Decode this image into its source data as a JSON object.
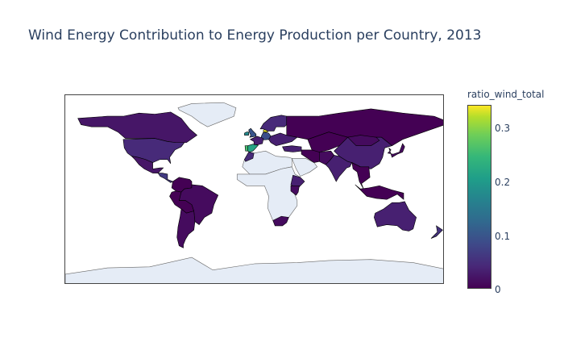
{
  "title": "Wind Energy Contribution to Energy Production per Country, 2013",
  "colorbar": {
    "title": "ratio_wind_total",
    "ticks": [
      "0.3",
      "0.2",
      "0.1",
      "0"
    ],
    "tick_values": [
      0.3,
      0.2,
      0.1,
      0
    ],
    "range": [
      0,
      0.34
    ],
    "colorscale": "Viridis"
  },
  "map": {
    "projection": "equirectangular",
    "no_data_color": "#e5ecf6",
    "border_color": "#000000",
    "ocean_color": "#ffffff"
  },
  "regions": [
    {
      "name": "Greenland",
      "value": null
    },
    {
      "name": "Canada",
      "value": 0.02
    },
    {
      "name": "United States",
      "value": 0.04
    },
    {
      "name": "Mexico",
      "value": 0.02
    },
    {
      "name": "Central America",
      "value": 0.06
    },
    {
      "name": "Colombia/Venezuela",
      "value": 0.0
    },
    {
      "name": "Brazil",
      "value": 0.01
    },
    {
      "name": "Peru/Bolivia",
      "value": 0.0
    },
    {
      "name": "Argentina/Chile",
      "value": 0.01
    },
    {
      "name": "Portugal",
      "value": 0.24
    },
    {
      "name": "Spain",
      "value": 0.2
    },
    {
      "name": "United Kingdom",
      "value": 0.09
    },
    {
      "name": "Ireland",
      "value": 0.16
    },
    {
      "name": "Denmark",
      "value": 0.33
    },
    {
      "name": "Germany",
      "value": 0.08
    },
    {
      "name": "France",
      "value": 0.03
    },
    {
      "name": "Scandinavia",
      "value": 0.04
    },
    {
      "name": "Eastern Europe",
      "value": 0.03
    },
    {
      "name": "Russia",
      "value": 0.0
    },
    {
      "name": "Turkey",
      "value": 0.03
    },
    {
      "name": "North Africa",
      "value": null
    },
    {
      "name": "Morocco",
      "value": 0.04
    },
    {
      "name": "Sub-Saharan Africa",
      "value": null
    },
    {
      "name": "Ethiopia",
      "value": 0.03
    },
    {
      "name": "Kenya",
      "value": 0.01
    },
    {
      "name": "South Africa",
      "value": 0.01
    },
    {
      "name": "Arabian Peninsula",
      "value": null
    },
    {
      "name": "Iran",
      "value": 0.0
    },
    {
      "name": "Central Asia",
      "value": 0.0
    },
    {
      "name": "Pakistan",
      "value": 0.01
    },
    {
      "name": "India",
      "value": 0.03
    },
    {
      "name": "China",
      "value": 0.03
    },
    {
      "name": "Mongolia",
      "value": 0.01
    },
    {
      "name": "Japan/Korea",
      "value": 0.01
    },
    {
      "name": "Southeast Asia",
      "value": 0.0
    },
    {
      "name": "Indonesia",
      "value": 0.0
    },
    {
      "name": "Australia",
      "value": 0.03
    },
    {
      "name": "New Zealand",
      "value": 0.05
    },
    {
      "name": "Antarctica",
      "value": null
    }
  ]
}
